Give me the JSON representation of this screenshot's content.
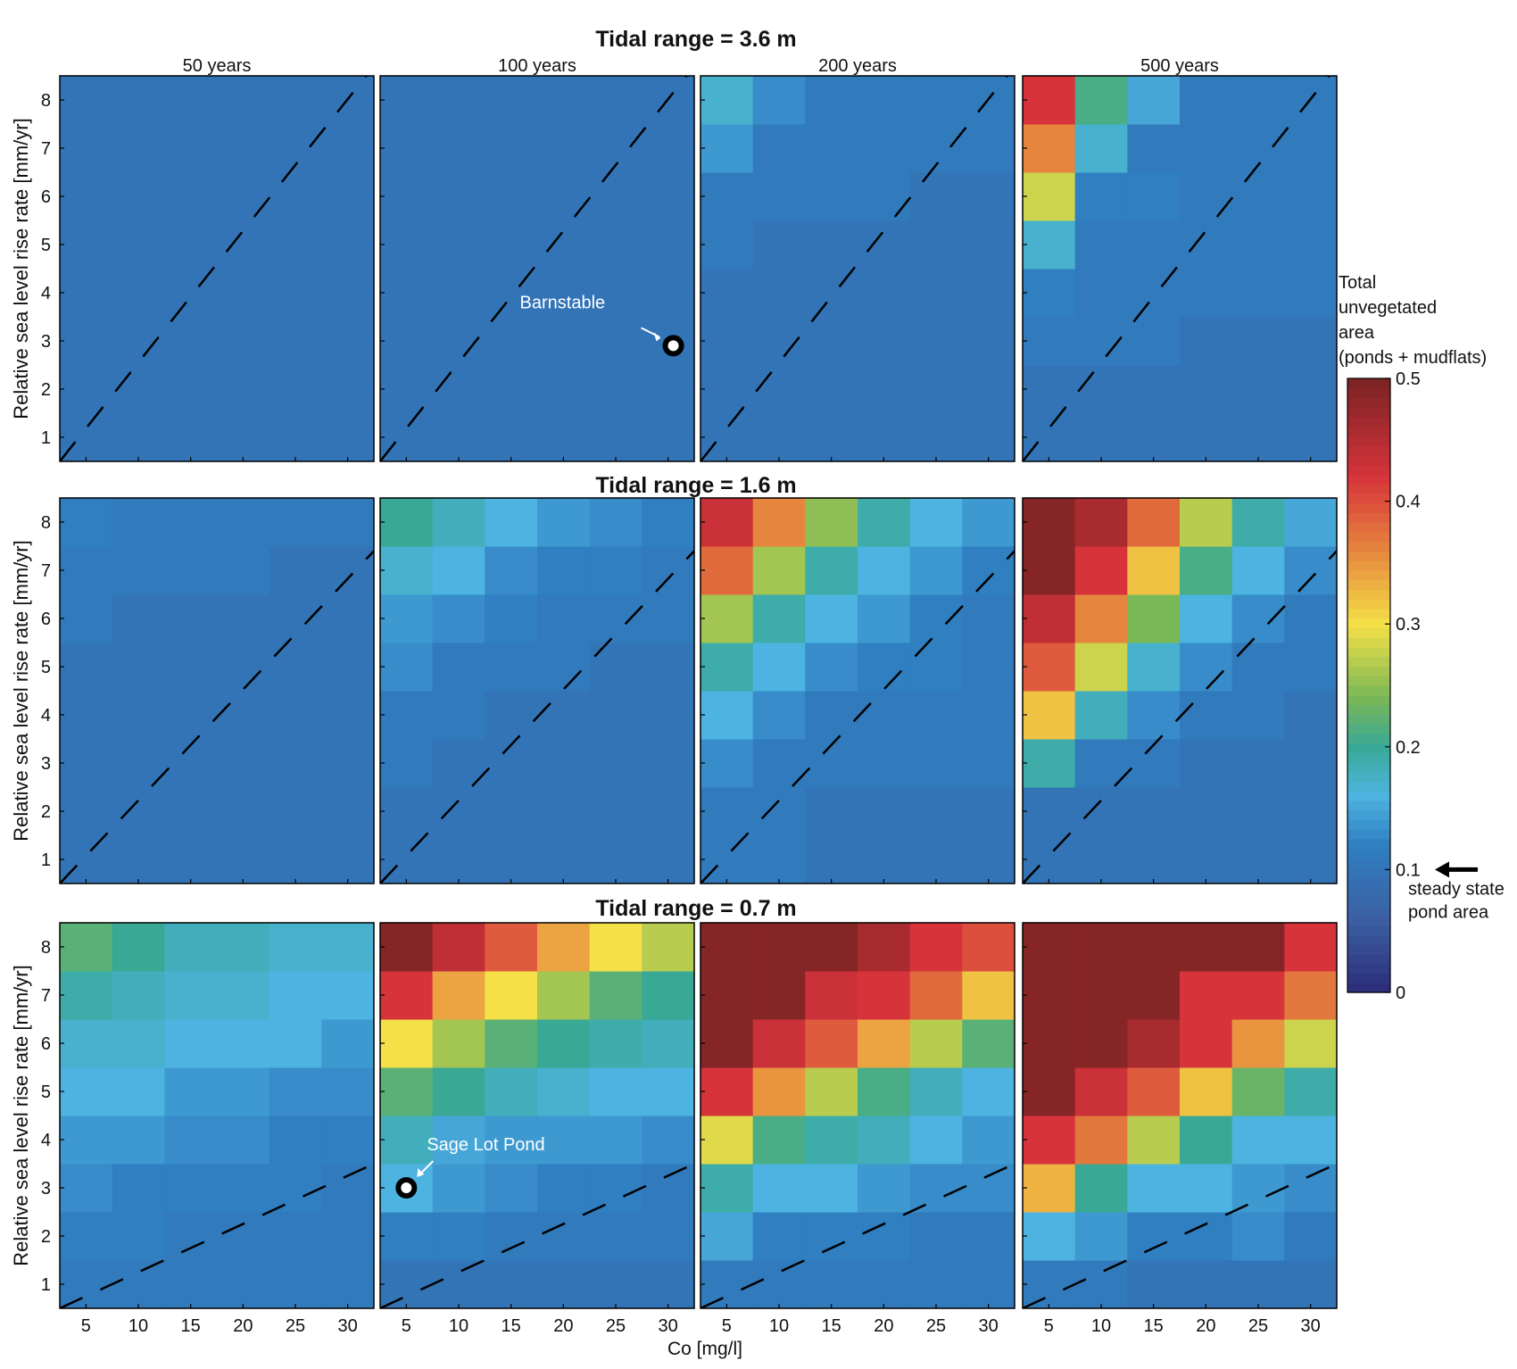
{
  "chart_data": [
    {
      "type": "heatmap",
      "title": "Tidal range = 3.6 m",
      "panel_titles": [
        "50 years",
        "100 years",
        "200 years",
        "500 years"
      ],
      "ylabel": "Relative sea level rise rate [mm/yr]",
      "xlabel": "",
      "x_categories": [
        5,
        10,
        15,
        20,
        25,
        30
      ],
      "y_categories": [
        1,
        2,
        3,
        4,
        5,
        6,
        7,
        8
      ],
      "x_ticks": [
        "5",
        "10",
        "15",
        "20",
        "25",
        "30"
      ],
      "y_ticks": [
        "1",
        "2",
        "3",
        "4",
        "5",
        "6",
        "7",
        "8"
      ],
      "show_x_ticklabels": false,
      "dashed_line": {
        "x": [
          2.5,
          32.5
        ],
        "y": [
          0.5,
          8.7
        ]
      },
      "panels": [
        {
          "name": "50 years",
          "values": [
            [
              0.1,
              0.1,
              0.1,
              0.1,
              0.1,
              0.1
            ],
            [
              0.1,
              0.1,
              0.1,
              0.1,
              0.1,
              0.1
            ],
            [
              0.1,
              0.1,
              0.1,
              0.1,
              0.1,
              0.1
            ],
            [
              0.1,
              0.1,
              0.1,
              0.1,
              0.1,
              0.1
            ],
            [
              0.1,
              0.1,
              0.1,
              0.1,
              0.1,
              0.1
            ],
            [
              0.1,
              0.1,
              0.1,
              0.1,
              0.1,
              0.1
            ],
            [
              0.1,
              0.1,
              0.1,
              0.1,
              0.1,
              0.1
            ],
            [
              0.1,
              0.1,
              0.1,
              0.1,
              0.1,
              0.1
            ]
          ]
        },
        {
          "name": "100 years",
          "values": [
            [
              0.1,
              0.1,
              0.1,
              0.1,
              0.1,
              0.1
            ],
            [
              0.1,
              0.1,
              0.1,
              0.1,
              0.1,
              0.1
            ],
            [
              0.1,
              0.1,
              0.1,
              0.1,
              0.1,
              0.1
            ],
            [
              0.1,
              0.1,
              0.1,
              0.1,
              0.1,
              0.1
            ],
            [
              0.1,
              0.1,
              0.1,
              0.1,
              0.1,
              0.1
            ],
            [
              0.1,
              0.1,
              0.1,
              0.1,
              0.1,
              0.1
            ],
            [
              0.1,
              0.1,
              0.1,
              0.1,
              0.1,
              0.1
            ],
            [
              0.1,
              0.1,
              0.1,
              0.1,
              0.1,
              0.1
            ]
          ],
          "marker": {
            "label": "Barnstable",
            "x": 30.5,
            "y": 2.9
          }
        },
        {
          "name": "200 years",
          "values": [
            [
              0.1,
              0.1,
              0.1,
              0.1,
              0.1,
              0.1
            ],
            [
              0.1,
              0.1,
              0.1,
              0.1,
              0.1,
              0.1
            ],
            [
              0.1,
              0.1,
              0.1,
              0.1,
              0.1,
              0.1
            ],
            [
              0.1,
              0.1,
              0.1,
              0.1,
              0.1,
              0.1
            ],
            [
              0.11,
              0.1,
              0.1,
              0.1,
              0.1,
              0.1
            ],
            [
              0.11,
              0.11,
              0.11,
              0.11,
              0.1,
              0.1
            ],
            [
              0.14,
              0.11,
              0.11,
              0.11,
              0.11,
              0.11
            ],
            [
              0.17,
              0.13,
              0.11,
              0.11,
              0.11,
              0.11
            ]
          ]
        },
        {
          "name": "500 years",
          "values": [
            [
              0.1,
              0.1,
              0.1,
              0.1,
              0.1,
              0.1
            ],
            [
              0.1,
              0.1,
              0.1,
              0.1,
              0.1,
              0.1
            ],
            [
              0.11,
              0.11,
              0.11,
              0.1,
              0.1,
              0.1
            ],
            [
              0.12,
              0.11,
              0.11,
              0.11,
              0.11,
              0.11
            ],
            [
              0.17,
              0.11,
              0.11,
              0.11,
              0.11,
              0.11
            ],
            [
              0.28,
              0.12,
              0.12,
              0.11,
              0.11,
              0.11
            ],
            [
              0.36,
              0.17,
              0.11,
              0.11,
              0.11,
              0.11
            ],
            [
              0.42,
              0.21,
              0.15,
              0.11,
              0.11,
              0.11
            ]
          ]
        }
      ]
    },
    {
      "type": "heatmap",
      "title": "Tidal range = 1.6 m",
      "panel_titles": [],
      "ylabel": "Relative sea level rise rate [mm/yr]",
      "xlabel": "",
      "x_categories": [
        5,
        10,
        15,
        20,
        25,
        30
      ],
      "y_categories": [
        1,
        2,
        3,
        4,
        5,
        6,
        7,
        8
      ],
      "x_ticks": [
        "5",
        "10",
        "15",
        "20",
        "25",
        "30"
      ],
      "y_ticks": [
        "1",
        "2",
        "3",
        "4",
        "5",
        "6",
        "7",
        "8"
      ],
      "show_x_ticklabels": false,
      "dashed_line": {
        "x": [
          2.5,
          32.5
        ],
        "y": [
          0.5,
          7.4
        ]
      },
      "panels": [
        {
          "name": "50 years",
          "values": [
            [
              0.1,
              0.1,
              0.1,
              0.1,
              0.1,
              0.1
            ],
            [
              0.1,
              0.1,
              0.1,
              0.1,
              0.1,
              0.1
            ],
            [
              0.1,
              0.1,
              0.1,
              0.1,
              0.1,
              0.1
            ],
            [
              0.1,
              0.1,
              0.1,
              0.1,
              0.1,
              0.1
            ],
            [
              0.1,
              0.1,
              0.1,
              0.1,
              0.1,
              0.1
            ],
            [
              0.11,
              0.1,
              0.1,
              0.1,
              0.1,
              0.1
            ],
            [
              0.11,
              0.11,
              0.11,
              0.11,
              0.1,
              0.1
            ],
            [
              0.12,
              0.11,
              0.11,
              0.11,
              0.11,
              0.11
            ]
          ]
        },
        {
          "name": "100 years",
          "values": [
            [
              0.1,
              0.1,
              0.1,
              0.1,
              0.1,
              0.1
            ],
            [
              0.1,
              0.1,
              0.1,
              0.1,
              0.1,
              0.1
            ],
            [
              0.11,
              0.1,
              0.1,
              0.1,
              0.1,
              0.1
            ],
            [
              0.11,
              0.11,
              0.1,
              0.1,
              0.1,
              0.1
            ],
            [
              0.13,
              0.11,
              0.11,
              0.11,
              0.1,
              0.1
            ],
            [
              0.14,
              0.13,
              0.12,
              0.11,
              0.11,
              0.11
            ],
            [
              0.17,
              0.16,
              0.13,
              0.12,
              0.12,
              0.11
            ],
            [
              0.2,
              0.18,
              0.16,
              0.14,
              0.13,
              0.12
            ]
          ]
        },
        {
          "name": "200 years",
          "values": [
            [
              0.11,
              0.11,
              0.1,
              0.1,
              0.1,
              0.1
            ],
            [
              0.11,
              0.11,
              0.1,
              0.1,
              0.1,
              0.1
            ],
            [
              0.13,
              0.11,
              0.11,
              0.11,
              0.11,
              0.11
            ],
            [
              0.16,
              0.13,
              0.11,
              0.11,
              0.11,
              0.11
            ],
            [
              0.19,
              0.16,
              0.13,
              0.12,
              0.12,
              0.11
            ],
            [
              0.26,
              0.19,
              0.16,
              0.14,
              0.12,
              0.11
            ],
            [
              0.38,
              0.26,
              0.19,
              0.16,
              0.14,
              0.12
            ],
            [
              0.43,
              0.36,
              0.25,
              0.19,
              0.16,
              0.14
            ]
          ]
        },
        {
          "name": "500 years",
          "values": [
            [
              0.1,
              0.1,
              0.1,
              0.1,
              0.1,
              0.1
            ],
            [
              0.1,
              0.1,
              0.1,
              0.1,
              0.1,
              0.1
            ],
            [
              0.19,
              0.11,
              0.11,
              0.1,
              0.1,
              0.1
            ],
            [
              0.32,
              0.18,
              0.13,
              0.11,
              0.11,
              0.1
            ],
            [
              0.39,
              0.28,
              0.17,
              0.13,
              0.11,
              0.11
            ],
            [
              0.44,
              0.36,
              0.24,
              0.16,
              0.13,
              0.11
            ],
            [
              0.49,
              0.42,
              0.32,
              0.21,
              0.16,
              0.13
            ],
            [
              0.49,
              0.46,
              0.38,
              0.27,
              0.19,
              0.15
            ]
          ]
        }
      ]
    },
    {
      "type": "heatmap",
      "title": "Tidal range = 0.7 m",
      "panel_titles": [],
      "ylabel": "Relative sea level rise rate [mm/yr]",
      "xlabel": "Co [mg/l]",
      "x_categories": [
        5,
        10,
        15,
        20,
        25,
        30
      ],
      "y_categories": [
        1,
        2,
        3,
        4,
        5,
        6,
        7,
        8
      ],
      "x_ticks": [
        "5",
        "10",
        "15",
        "20",
        "25",
        "30"
      ],
      "y_ticks": [
        "1",
        "2",
        "3",
        "4",
        "5",
        "6",
        "7",
        "8"
      ],
      "show_x_ticklabels": true,
      "dashed_line": {
        "x": [
          2.5,
          32.5
        ],
        "y": [
          0.5,
          3.5
        ]
      },
      "panels": [
        {
          "name": "50 years",
          "values": [
            [
              0.11,
              0.11,
              0.11,
              0.11,
              0.11,
              0.11
            ],
            [
              0.12,
              0.12,
              0.11,
              0.11,
              0.11,
              0.11
            ],
            [
              0.13,
              0.12,
              0.12,
              0.12,
              0.12,
              0.11
            ],
            [
              0.14,
              0.14,
              0.13,
              0.13,
              0.12,
              0.12
            ],
            [
              0.16,
              0.16,
              0.14,
              0.14,
              0.13,
              0.13
            ],
            [
              0.17,
              0.17,
              0.16,
              0.16,
              0.16,
              0.14
            ],
            [
              0.19,
              0.18,
              0.17,
              0.17,
              0.16,
              0.16
            ],
            [
              0.22,
              0.2,
              0.18,
              0.18,
              0.17,
              0.17
            ]
          ]
        },
        {
          "name": "100 years",
          "values": [
            [
              0.1,
              0.1,
              0.1,
              0.1,
              0.1,
              0.1
            ],
            [
              0.12,
              0.12,
              0.11,
              0.11,
              0.11,
              0.11
            ],
            [
              0.16,
              0.14,
              0.13,
              0.12,
              0.12,
              0.11
            ],
            [
              0.18,
              0.15,
              0.14,
              0.14,
              0.14,
              0.13
            ],
            [
              0.22,
              0.2,
              0.18,
              0.17,
              0.16,
              0.16
            ],
            [
              0.3,
              0.26,
              0.22,
              0.2,
              0.19,
              0.18
            ],
            [
              0.42,
              0.34,
              0.3,
              0.26,
              0.22,
              0.2
            ],
            [
              0.49,
              0.44,
              0.39,
              0.34,
              0.3,
              0.27
            ]
          ],
          "marker": {
            "label": "Sage Lot Pond",
            "x": 5.0,
            "y": 3.0
          }
        },
        {
          "name": "200 years",
          "values": [
            [
              0.11,
              0.11,
              0.11,
              0.11,
              0.11,
              0.11
            ],
            [
              0.15,
              0.12,
              0.12,
              0.12,
              0.11,
              0.11
            ],
            [
              0.19,
              0.16,
              0.16,
              0.14,
              0.13,
              0.13
            ],
            [
              0.29,
              0.21,
              0.19,
              0.18,
              0.16,
              0.14
            ],
            [
              0.42,
              0.35,
              0.27,
              0.21,
              0.18,
              0.16
            ],
            [
              0.49,
              0.43,
              0.39,
              0.34,
              0.27,
              0.22
            ],
            [
              0.49,
              0.49,
              0.43,
              0.42,
              0.38,
              0.32
            ],
            [
              0.49,
              0.49,
              0.49,
              0.46,
              0.42,
              0.4
            ]
          ]
        },
        {
          "name": "500 years",
          "values": [
            [
              0.11,
              0.11,
              0.1,
              0.1,
              0.1,
              0.1
            ],
            [
              0.16,
              0.14,
              0.12,
              0.12,
              0.13,
              0.11
            ],
            [
              0.33,
              0.2,
              0.16,
              0.16,
              0.14,
              0.13
            ],
            [
              0.42,
              0.37,
              0.27,
              0.2,
              0.16,
              0.16
            ],
            [
              0.49,
              0.43,
              0.39,
              0.32,
              0.23,
              0.19
            ],
            [
              0.49,
              0.49,
              0.46,
              0.42,
              0.35,
              0.28
            ],
            [
              0.49,
              0.49,
              0.49,
              0.42,
              0.42,
              0.37
            ],
            [
              0.49,
              0.49,
              0.49,
              0.49,
              0.49,
              0.42
            ]
          ]
        }
      ]
    }
  ],
  "colorbar": {
    "label_lines": [
      "Total",
      "unvegetated",
      "area",
      "(ponds + mudflats)"
    ],
    "ticks": [
      "0",
      "0.1",
      "0.2",
      "0.3",
      "0.4",
      "0.5"
    ],
    "range": [
      0,
      0.5
    ],
    "colormap": [
      "#2c2c78",
      "#3b5fa3",
      "#2f7fc1",
      "#4db3e0",
      "#39a996",
      "#7ab857",
      "#f5e047",
      "#e6863e",
      "#d6333b",
      "#7a2323"
    ],
    "steady_state_label_lines": [
      "steady state",
      "pond area"
    ],
    "steady_state_value": 0.1
  }
}
